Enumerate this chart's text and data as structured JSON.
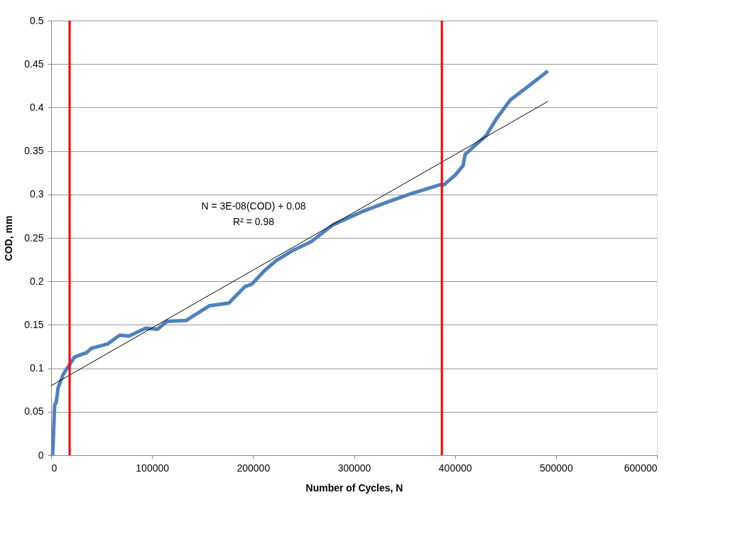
{
  "chart_data": {
    "type": "line",
    "xlabel": "Number of Cycles,  N",
    "ylabel": "COD, mm",
    "xlim": [
      0,
      600000
    ],
    "xticks": [
      0,
      100000,
      200000,
      300000,
      400000,
      500000,
      600000
    ],
    "ylim": [
      0,
      0.5
    ],
    "yticks": [
      0,
      0.05,
      0.1,
      0.15,
      0.2,
      0.25,
      0.3,
      0.35,
      0.4,
      0.45,
      0.5
    ],
    "grid": "y",
    "legend": false,
    "marker": "none",
    "line_style": "solid",
    "series": [
      {
        "color": "#4f81bd",
        "x": [
          1400,
          2100,
          3500,
          4900,
          7000,
          12000,
          19700,
          23200,
          35000,
          40000,
          56000,
          68000,
          77000,
          93500,
          105500,
          114600,
          133600,
          157000,
          176000,
          192000,
          199000,
          211000,
          223000,
          240000,
          258000,
          279000,
          309500,
          330000,
          356600,
          384800,
          389000,
          400000,
          408000,
          410000,
          431000,
          441000,
          455000,
          471000,
          492000
        ],
        "values": [
          0,
          0.017,
          0.058,
          0.06,
          0.078,
          0.093,
          0.107,
          0.113,
          0.118,
          0.123,
          0.128,
          0.138,
          0.137,
          0.146,
          0.145,
          0.154,
          0.155,
          0.172,
          0.175,
          0.194,
          0.197,
          0.212,
          0.224,
          0.236,
          0.246,
          0.265,
          0.281,
          0.29,
          0.301,
          0.311,
          0.311,
          0.322,
          0.333,
          0.346,
          0.368,
          0.387,
          0.409,
          0.423,
          0.442
        ]
      },
      {
        "color": "#000000",
        "x": [
          0,
          492000
        ],
        "values": [
          0.08,
          0.407
        ]
      }
    ],
    "ref_lines": [
      {
        "axis": "x",
        "value": 18300,
        "color": "#ff0000"
      },
      {
        "axis": "x",
        "value": 387000,
        "color": "#ff0000"
      }
    ],
    "annotations": [
      "N = 3E-08(COD) + 0.08",
      "R² = 0.98"
    ]
  }
}
